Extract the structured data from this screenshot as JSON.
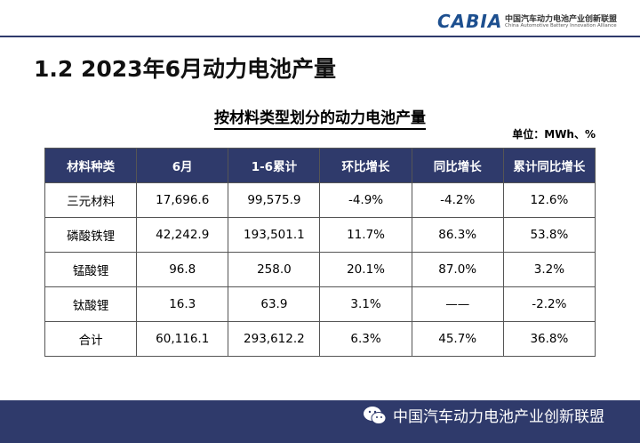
{
  "header": {
    "logo": "CABIA",
    "org_cn": "中国汽车动力电池产业创新联盟",
    "org_en": "China Automotive Battery Innovation Alliance"
  },
  "title": "1.2 2023年6月动力电池产量",
  "table": {
    "title": "按材料类型划分的动力电池产量",
    "unit": "单位：MWh、%",
    "columns": [
      "材料种类",
      "6月",
      "1-6累计",
      "环比增长",
      "同比增长",
      "累计同比增长"
    ],
    "rows": [
      [
        "三元材料",
        "17,696.6",
        "99,575.9",
        "-4.9%",
        "-4.2%",
        "12.6%"
      ],
      [
        "磷酸铁锂",
        "42,242.9",
        "193,501.1",
        "11.7%",
        "86.3%",
        "53.8%"
      ],
      [
        "锰酸锂",
        "96.8",
        "258.0",
        "20.1%",
        "87.0%",
        "3.2%"
      ],
      [
        "钛酸锂",
        "16.3",
        "63.9",
        "3.1%",
        "——",
        "-2.2%"
      ],
      [
        "合计",
        "60,116.1",
        "293,612.2",
        "6.3%",
        "45.7%",
        "36.8%"
      ]
    ]
  },
  "footer": {
    "text": "中国汽车动力电池产业创新联盟"
  }
}
